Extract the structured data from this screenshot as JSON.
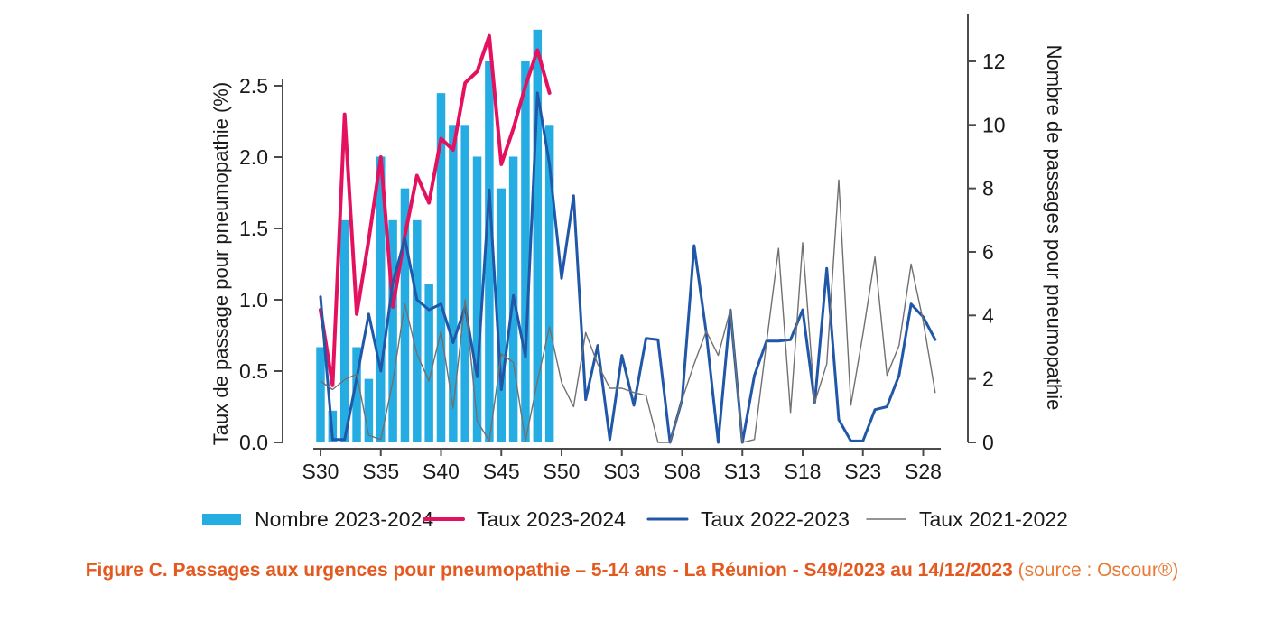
{
  "figure": {
    "caption_main": "Figure C. Passages aux urgences pour pneumopathie – 5-14 ans - La Réunion - S49/2023 au 14/12/2023",
    "caption_source": "(source : Oscour®)"
  },
  "chart_data": {
    "type": "bar",
    "subtype": "combo-bar-and-lines-dual-axis",
    "title": "",
    "xlabel": "",
    "x_tick_labels": [
      "S30",
      "S35",
      "S40",
      "S45",
      "S50",
      "S03",
      "S08",
      "S13",
      "S18",
      "S23",
      "S28"
    ],
    "weeks": [
      "S30",
      "S31",
      "S32",
      "S33",
      "S34",
      "S35",
      "S36",
      "S37",
      "S38",
      "S39",
      "S40",
      "S41",
      "S42",
      "S43",
      "S44",
      "S45",
      "S46",
      "S47",
      "S48",
      "S49",
      "S50",
      "S51",
      "S52",
      "S01",
      "S02",
      "S03",
      "S04",
      "S05",
      "S06",
      "S07",
      "S08",
      "S09",
      "S10",
      "S11",
      "S12",
      "S13",
      "S14",
      "S15",
      "S16",
      "S17",
      "S18",
      "S19",
      "S20",
      "S21",
      "S22",
      "S23",
      "S24",
      "S25",
      "S26",
      "S27",
      "S28",
      "S29"
    ],
    "left_axis": {
      "label": "Taux de passage pour pneumopathie (%)",
      "tick_labels": [
        "0.0",
        "0.5",
        "1.0",
        "1.5",
        "2.0",
        "2.5"
      ],
      "ticks": [
        0.0,
        0.5,
        1.0,
        1.5,
        2.0,
        2.5
      ],
      "range": [
        0,
        3.0
      ],
      "grid": false
    },
    "right_axis": {
      "label": "Nombre de passages pour pneumopathie",
      "tick_labels": [
        "0",
        "2",
        "4",
        "6",
        "8",
        "10",
        "12"
      ],
      "ticks": [
        0,
        2,
        4,
        6,
        8,
        10,
        12
      ],
      "range": [
        0,
        13.5
      ],
      "grid": false
    },
    "legend_position": "bottom",
    "series": [
      {
        "name": "Nombre 2023-2024",
        "type": "bar",
        "axis": "right",
        "color": "#25ade3",
        "values": [
          3,
          1,
          7,
          3,
          2,
          9,
          7,
          8,
          7,
          5,
          11,
          10,
          10,
          9,
          12,
          8,
          9,
          12,
          13,
          10
        ]
      },
      {
        "name": "Taux 2023-2024",
        "type": "line",
        "axis": "left",
        "color": "#e4115f",
        "stroke_width": 4,
        "values": [
          0.93,
          0.4,
          2.3,
          0.9,
          1.42,
          2.0,
          0.95,
          1.45,
          1.87,
          1.68,
          2.13,
          2.05,
          2.52,
          2.6,
          2.85,
          1.95,
          2.2,
          2.5,
          2.75,
          2.45
        ]
      },
      {
        "name": "Taux 2022-2023",
        "type": "line",
        "axis": "left",
        "color": "#2057a8",
        "stroke_width": 3,
        "values": [
          1.02,
          0.02,
          0.02,
          0.45,
          0.9,
          0.5,
          1.12,
          1.43,
          1.0,
          0.93,
          0.97,
          0.7,
          0.95,
          0.46,
          1.77,
          0.37,
          1.03,
          0.6,
          2.45,
          1.95,
          1.15,
          1.73,
          0.3,
          0.68,
          0.02,
          0.61,
          0.26,
          0.73,
          0.72,
          0.0,
          0.3,
          1.38,
          0.77,
          0.0,
          0.93,
          0.0,
          0.47,
          0.71,
          0.71,
          0.72,
          0.93,
          0.28,
          1.22,
          0.16,
          0.01,
          0.01,
          0.23,
          0.25,
          0.47,
          0.97,
          0.88,
          0.72
        ]
      },
      {
        "name": "Taux 2021-2022",
        "type": "line",
        "axis": "left",
        "color": "#707070",
        "stroke_width": 1.4,
        "values": [
          0.43,
          0.37,
          0.44,
          0.48,
          0.05,
          0.02,
          0.43,
          0.97,
          0.62,
          0.43,
          0.78,
          0.24,
          1.0,
          0.15,
          0.01,
          0.62,
          0.56,
          0.01,
          0.43,
          0.81,
          0.42,
          0.25,
          0.77,
          0.55,
          0.38,
          0.38,
          0.35,
          0.33,
          0.0,
          0.0,
          0.3,
          0.55,
          0.78,
          0.61,
          0.93,
          0.0,
          0.02,
          0.7,
          1.36,
          0.21,
          1.4,
          0.28,
          0.55,
          1.84,
          0.26,
          0.76,
          1.3,
          0.47,
          0.68,
          1.25,
          0.85,
          0.35
        ]
      }
    ],
    "legend": [
      "Nombre 2023-2024",
      "Taux 2023-2024",
      "Taux 2022-2023",
      "Taux 2021-2022"
    ]
  }
}
